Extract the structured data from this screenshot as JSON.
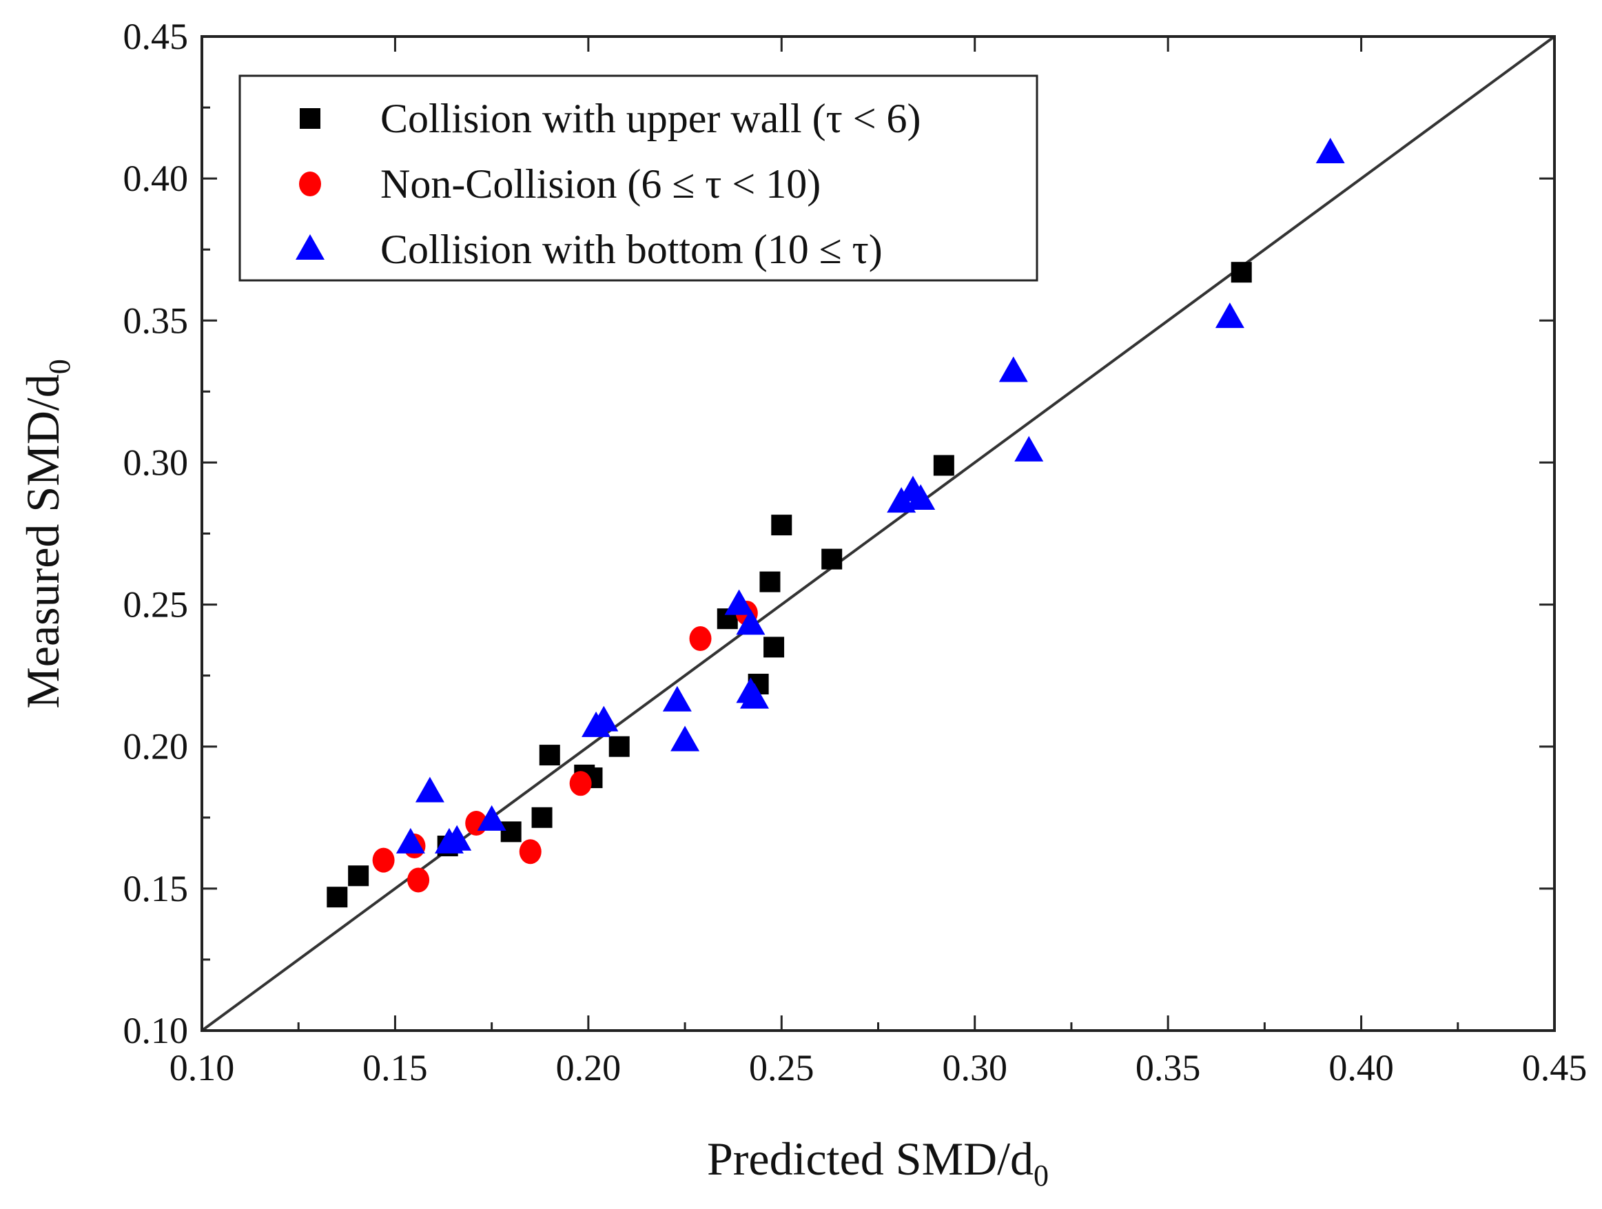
{
  "chart_data": {
    "type": "scatter",
    "title": "",
    "xlabel": "Predicted SMD/d",
    "xlabel_subscript": "0",
    "ylabel": "Measured SMD/d",
    "ylabel_subscript": "0",
    "xlim": [
      0.1,
      0.45
    ],
    "ylim": [
      0.1,
      0.45
    ],
    "xticks": [
      "0.10",
      "0.15",
      "0.20",
      "0.25",
      "0.30",
      "0.35",
      "0.40",
      "0.45"
    ],
    "yticks": [
      "0.10",
      "0.15",
      "0.20",
      "0.25",
      "0.30",
      "0.35",
      "0.40",
      "0.45"
    ],
    "grid": false,
    "legend_position": "top-left",
    "reference_line": {
      "name": "y = x",
      "from": [
        0.1,
        0.1
      ],
      "to": [
        0.45,
        0.45
      ]
    },
    "series": [
      {
        "name": "Collision with upper wall (τ <  6)",
        "marker": "square",
        "color": "#000000",
        "points": [
          [
            0.135,
            0.147
          ],
          [
            0.1405,
            0.1545
          ],
          [
            0.1636,
            0.165
          ],
          [
            0.18,
            0.17
          ],
          [
            0.188,
            0.175
          ],
          [
            0.19,
            0.197
          ],
          [
            0.199,
            0.19
          ],
          [
            0.201,
            0.189
          ],
          [
            0.208,
            0.2
          ],
          [
            0.236,
            0.245
          ],
          [
            0.244,
            0.222
          ],
          [
            0.248,
            0.235
          ],
          [
            0.247,
            0.258
          ],
          [
            0.25,
            0.278
          ],
          [
            0.263,
            0.266
          ],
          [
            0.292,
            0.299
          ],
          [
            0.369,
            0.367
          ]
        ]
      },
      {
        "name": "Non-Collision (6  ≤ τ < 10)",
        "marker": "circle",
        "color": "#ff0000",
        "points": [
          [
            0.147,
            0.16
          ],
          [
            0.155,
            0.165
          ],
          [
            0.156,
            0.153
          ],
          [
            0.171,
            0.173
          ],
          [
            0.185,
            0.163
          ],
          [
            0.198,
            0.187
          ],
          [
            0.229,
            0.238
          ],
          [
            0.241,
            0.247
          ]
        ]
      },
      {
        "name": "Collision with bottom (10 ≤  τ)",
        "marker": "triangle",
        "color": "#0000ff",
        "points": [
          [
            0.154,
            0.166
          ],
          [
            0.159,
            0.184
          ],
          [
            0.164,
            0.166
          ],
          [
            0.166,
            0.167
          ],
          [
            0.175,
            0.174
          ],
          [
            0.202,
            0.207
          ],
          [
            0.204,
            0.209
          ],
          [
            0.223,
            0.216
          ],
          [
            0.225,
            0.202
          ],
          [
            0.239,
            0.25
          ],
          [
            0.242,
            0.243
          ],
          [
            0.242,
            0.219
          ],
          [
            0.243,
            0.217
          ],
          [
            0.281,
            0.286
          ],
          [
            0.284,
            0.29
          ],
          [
            0.286,
            0.287
          ],
          [
            0.31,
            0.332
          ],
          [
            0.314,
            0.304
          ],
          [
            0.366,
            0.351
          ],
          [
            0.392,
            0.409
          ]
        ]
      }
    ]
  }
}
